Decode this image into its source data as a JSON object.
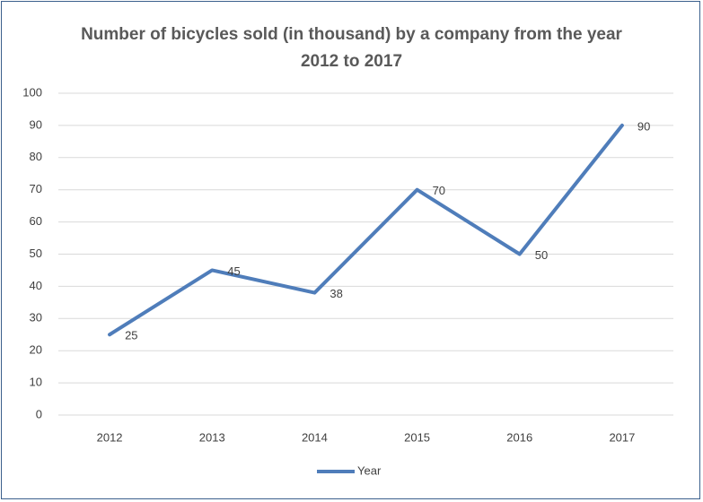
{
  "chart_data": {
    "type": "line",
    "title": "Number of bicycles sold (in thousand) by a company from the year 2012 to 2017",
    "categories": [
      "2012",
      "2013",
      "2014",
      "2015",
      "2016",
      "2017"
    ],
    "series": [
      {
        "name": "Year",
        "color": "#4f7dba",
        "values": [
          25,
          45,
          38,
          70,
          50,
          90
        ]
      }
    ],
    "ylim": [
      0,
      100
    ],
    "yticks": [
      0,
      10,
      20,
      30,
      40,
      50,
      60,
      70,
      80,
      90,
      100
    ],
    "grid": true,
    "data_labels": true,
    "legend": "bottom"
  }
}
